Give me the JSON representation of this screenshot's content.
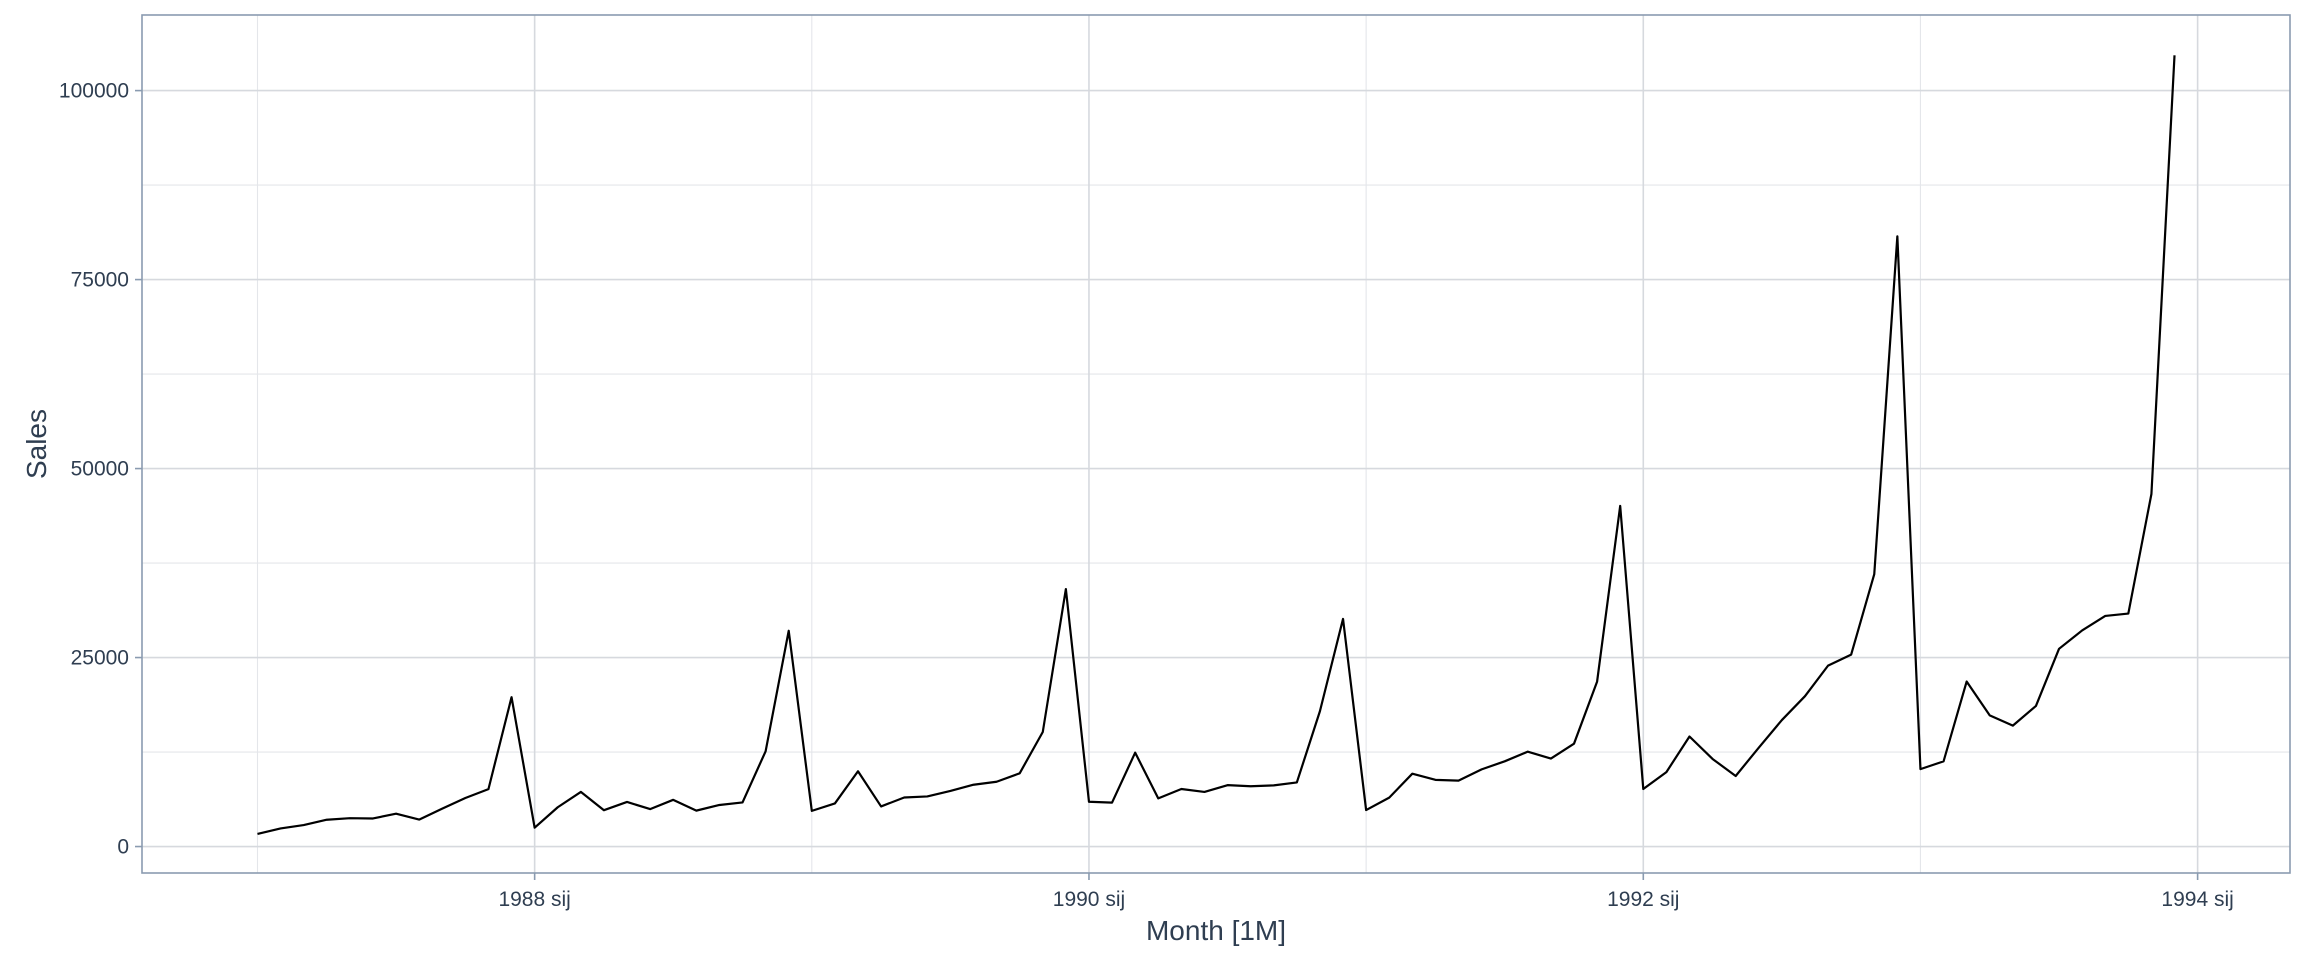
{
  "chart_data": {
    "type": "line",
    "title": "",
    "xlabel": "Month [1M]",
    "ylabel": "Sales",
    "x_start": "1987-01",
    "x_interval": "1 month",
    "xlim": [
      "1986-08",
      "1994-05"
    ],
    "ylim": [
      -3500,
      110000
    ],
    "x_ticks": [
      {
        "label": "1988 sij",
        "date": "1988-01"
      },
      {
        "label": "1990 sij",
        "date": "1990-01"
      },
      {
        "label": "1992 sij",
        "date": "1992-01"
      },
      {
        "label": "1994 sij",
        "date": "1994-01"
      }
    ],
    "y_ticks": [
      0,
      25000,
      50000,
      75000,
      100000
    ],
    "y_tick_labels": [
      "0",
      "25000",
      "50000",
      "75000",
      "100000"
    ],
    "grid": true,
    "legend": "none",
    "series": [
      {
        "color": "#000000",
        "values": [
          1664,
          2397,
          2840,
          3547,
          3753,
          3714,
          4350,
          3566,
          5022,
          6423,
          7600,
          19756,
          2499,
          5198,
          7225,
          4806,
          5900,
          4951,
          6179,
          4752,
          5496,
          5835,
          12600,
          28541,
          4717,
          5702,
          9957,
          5304,
          6492,
          6630,
          7349,
          8176,
          8573,
          9690,
          15151,
          34061,
          5921,
          5814,
          12421,
          6369,
          7609,
          7224,
          8121,
          7979,
          8093,
          8476,
          17914,
          30114,
          4826,
          6470,
          9638,
          8821,
          8722,
          10209,
          11276,
          12552,
          11637,
          13606,
          21822,
          45060,
          7615,
          9849,
          14558,
          11587,
          9332,
          13082,
          16732,
          19888,
          23933,
          25391,
          36024,
          80721,
          10243,
          11266,
          21826,
          17357,
          15997,
          18601,
          26155,
          28586,
          30505,
          30821,
          46634,
          104661
        ]
      }
    ]
  }
}
